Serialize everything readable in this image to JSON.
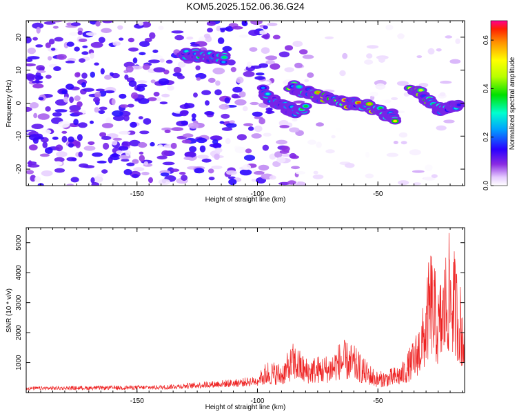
{
  "title": "KOM5.2025.152.06.36.G24",
  "chart_data": [
    {
      "type": "heatmap",
      "title": "KOM5.2025.152.06.36.G24",
      "xlabel": "Height of straight line (km)",
      "ylabel": "Frequency (Hz)",
      "xlim": [
        -196,
        -14
      ],
      "ylim": [
        -25,
        25
      ],
      "xticks": [
        -150,
        -100,
        -50
      ],
      "yticks": [
        20,
        10,
        0,
        -10,
        -20
      ],
      "xtick_labels": [
        "-150",
        "-100",
        "-50"
      ],
      "ytick_labels": [
        "20",
        "10",
        "0",
        "-10",
        "-20"
      ],
      "colorbar": {
        "label": "Normalized spectral amplitude",
        "range": [
          0,
          0.68
        ],
        "ticks": [
          0.0,
          0.2,
          0.4,
          0.6
        ],
        "tick_labels": [
          "0.0",
          "0.2",
          "0.4",
          "0.6"
        ]
      },
      "ridges": [
        {
          "x": [
            -131,
            -125,
            -119,
            -113
          ],
          "y": [
            15.0,
            14.5,
            14.0,
            13.5
          ],
          "peak": 0.45
        },
        {
          "x": [
            -98,
            -93,
            -88,
            -84,
            -80
          ],
          "y": [
            3.5,
            0.5,
            -1.5,
            -2.5,
            -2.0
          ],
          "peak": 0.42
        },
        {
          "x": [
            -86,
            -80,
            -74,
            -68,
            -62,
            -56,
            -50,
            -46,
            -42
          ],
          "y": [
            5.0,
            3.5,
            2.0,
            0.5,
            0.0,
            -0.5,
            -2.0,
            -3.5,
            -4.5
          ],
          "peak": 0.68
        },
        {
          "x": [
            -36,
            -32,
            -28,
            -24,
            -20,
            -16
          ],
          "y": [
            5.0,
            3.0,
            0.5,
            -2.5,
            -1.5,
            -1.0
          ],
          "peak": 0.62
        }
      ],
      "grid": false,
      "legend": "none"
    },
    {
      "type": "line",
      "xlabel": "Height of straight line (km)",
      "ylabel": "SNR (10 * v/v)",
      "xlim": [
        -196,
        -14
      ],
      "ylim": [
        0,
        5500
      ],
      "xticks": [
        -150,
        -100,
        -50
      ],
      "yticks": [
        1000,
        2000,
        3000,
        4000,
        5000
      ],
      "xtick_labels": [
        "-150",
        "-100",
        "-50"
      ],
      "ytick_labels": [
        "1000",
        "2000",
        "3000",
        "4000",
        "5000"
      ],
      "color": "#ee2222",
      "envelope": {
        "x": [
          -196,
          -160,
          -140,
          -125,
          -110,
          -100,
          -96,
          -90,
          -85,
          -80,
          -70,
          -65,
          -60,
          -55,
          -50,
          -45,
          -40,
          -35,
          -31,
          -28,
          -25,
          -22,
          -20,
          -18,
          -16,
          -14
        ],
        "y": [
          200,
          230,
          250,
          350,
          450,
          550,
          1100,
          1000,
          1700,
          1200,
          1300,
          1800,
          1600,
          1100,
          700,
          800,
          1000,
          1800,
          3000,
          5000,
          3500,
          4800,
          5500,
          4700,
          3800,
          2800
        ]
      },
      "grid": false,
      "legend": "none"
    }
  ]
}
